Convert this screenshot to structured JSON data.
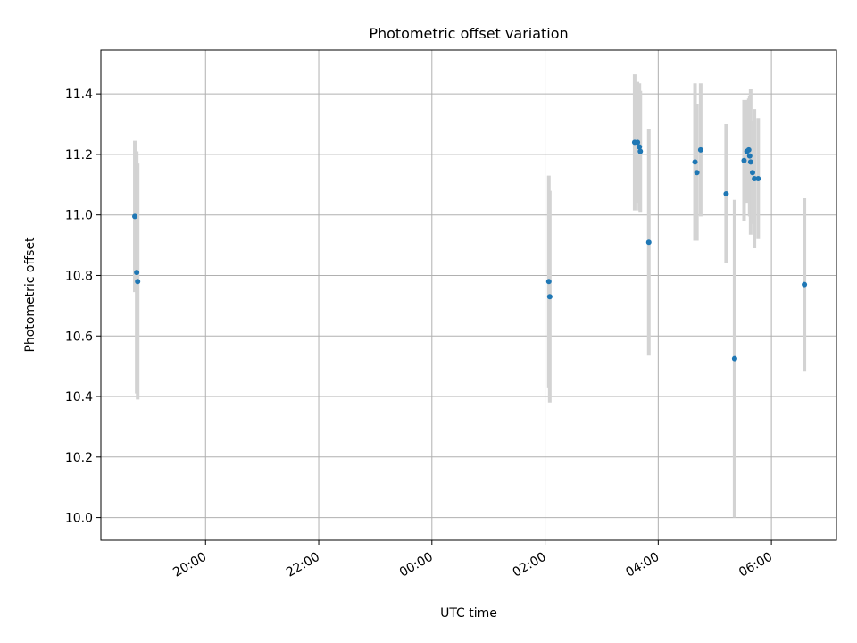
{
  "chart_data": {
    "type": "scatter",
    "title": "Photometric offset variation",
    "xlabel": "UTC time",
    "ylabel": "Photometric offset",
    "x_axis_type": "time",
    "xlim": [
      "18:09",
      "07:09"
    ],
    "ylim": [
      9.925,
      11.545
    ],
    "xticks": [
      "20:00",
      "22:00",
      "00:00",
      "02:00",
      "04:00",
      "06:00"
    ],
    "yticks": [
      "10.0",
      "10.2",
      "10.4",
      "10.6",
      "10.8",
      "11.0",
      "11.2",
      "11.4"
    ],
    "grid": true,
    "marker_color": "#1f77b4",
    "errorbar_color": "#d3d3d3",
    "series": [
      {
        "points": [
          {
            "t": "18:45",
            "y": 10.995,
            "err": 0.25
          },
          {
            "t": "18:47",
            "y": 10.81,
            "err": 0.4
          },
          {
            "t": "18:48",
            "y": 10.78,
            "err": 0.39
          },
          {
            "t": "02:04",
            "y": 10.78,
            "err": 0.35
          },
          {
            "t": "02:05",
            "y": 10.73,
            "err": 0.35
          },
          {
            "t": "03:35",
            "y": 11.24,
            "err": 0.225
          },
          {
            "t": "03:38",
            "y": 11.24,
            "err": 0.2
          },
          {
            "t": "03:40",
            "y": 11.225,
            "err": 0.21
          },
          {
            "t": "03:41",
            "y": 11.21,
            "err": 0.2
          },
          {
            "t": "03:50",
            "y": 10.91,
            "err": 0.375
          },
          {
            "t": "04:39",
            "y": 11.175,
            "err": 0.26
          },
          {
            "t": "04:41",
            "y": 11.14,
            "err": 0.225
          },
          {
            "t": "04:45",
            "y": 11.215,
            "err": 0.22
          },
          {
            "t": "05:12",
            "y": 11.07,
            "err": 0.23
          },
          {
            "t": "05:21",
            "y": 10.525,
            "err": 0.525
          },
          {
            "t": "05:31",
            "y": 11.18,
            "err": 0.2
          },
          {
            "t": "05:34",
            "y": 11.21,
            "err": 0.17
          },
          {
            "t": "05:36",
            "y": 11.215,
            "err": 0.17
          },
          {
            "t": "05:37",
            "y": 11.195,
            "err": 0.2
          },
          {
            "t": "05:38",
            "y": 11.175,
            "err": 0.24
          },
          {
            "t": "05:40",
            "y": 11.14,
            "err": 0.17
          },
          {
            "t": "05:42",
            "y": 11.12,
            "err": 0.23
          },
          {
            "t": "05:46",
            "y": 11.12,
            "err": 0.2
          },
          {
            "t": "06:35",
            "y": 10.77,
            "err": 0.285
          }
        ]
      }
    ]
  }
}
